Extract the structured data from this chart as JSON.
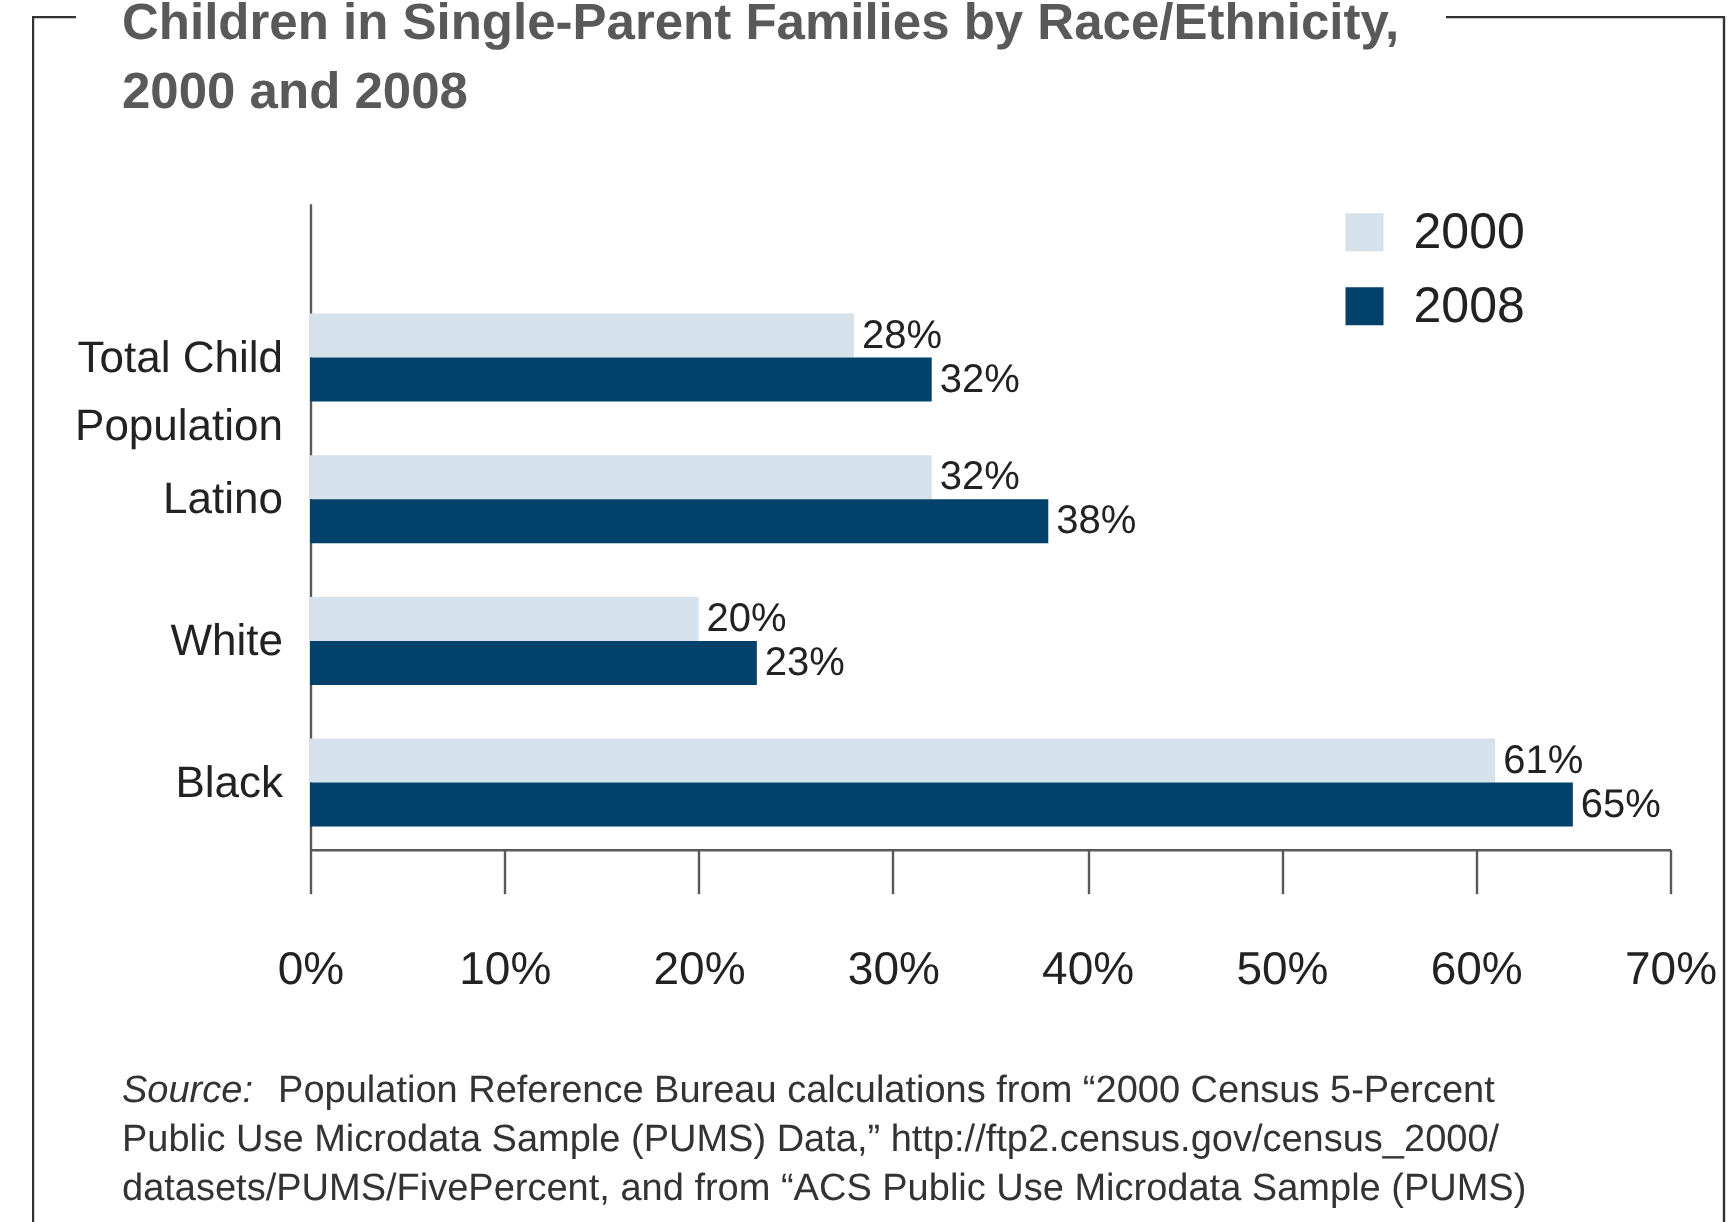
{
  "chart_data": {
    "type": "bar",
    "orientation": "horizontal",
    "title": "Children in Single-Parent Families by Race/Ethnicity, 2000 and 2008",
    "categories": [
      "Total Child Population",
      "Latino",
      "White",
      "Black"
    ],
    "series": [
      {
        "name": "2000",
        "color": "#d5e1eb",
        "values": [
          28,
          32,
          20,
          61
        ],
        "value_labels": [
          "28%",
          "32%",
          "20%",
          "61%"
        ]
      },
      {
        "name": "2008",
        "color": "#02416a",
        "values": [
          32,
          38,
          23,
          65
        ],
        "value_labels": [
          "32%",
          "38%",
          "23%",
          "65%"
        ]
      }
    ],
    "xlim": [
      0,
      70
    ],
    "xticks": [
      {
        "value": 0,
        "label": "0%"
      },
      {
        "value": 10,
        "label": "10%"
      },
      {
        "value": 20,
        "label": "20%"
      },
      {
        "value": 30,
        "label": "30%"
      },
      {
        "value": 40,
        "label": "40%"
      },
      {
        "value": 50,
        "label": "50%"
      },
      {
        "value": 60,
        "label": "60%"
      },
      {
        "value": 70,
        "label": "70%"
      }
    ],
    "grid": false,
    "legend": "top right",
    "annotations": [
      "Source:  Population Reference Bureau calculations from “2000 Census 5-Percent Public Use Microdata Sample (PUMS) Data,” http://ftp2.census.gov/census_2000/datasets/PUMS/FivePercent, and from “ACS Public Use Microdata Sample (PUMS)"
    ]
  }
}
